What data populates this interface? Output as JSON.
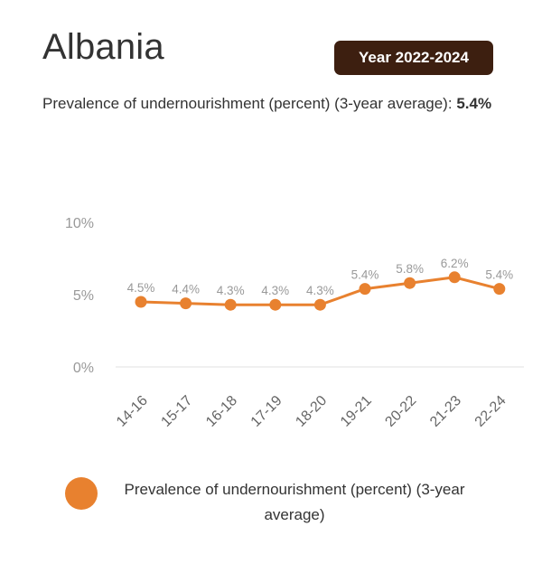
{
  "header": {
    "country": "Albania",
    "year_badge": "Year 2022-2024"
  },
  "indicator": {
    "label": "Prevalence of undernourishment (percent) (3-year average):",
    "value": "5.4%"
  },
  "legend": {
    "label": "Prevalence of undernourishment (percent) (3-year average)"
  },
  "colors": {
    "series": "#e8812f",
    "badge_bg": "#3d1f10"
  },
  "chart_data": {
    "type": "line",
    "categories": [
      "14-16",
      "15-17",
      "16-18",
      "17-19",
      "18-20",
      "19-21",
      "20-22",
      "21-23",
      "22-24"
    ],
    "series": [
      {
        "name": "Prevalence of undernourishment (percent) (3-year average)",
        "values": [
          4.5,
          4.4,
          4.3,
          4.3,
          4.3,
          5.4,
          5.8,
          6.2,
          5.4
        ],
        "labels": [
          "4.5%",
          "4.4%",
          "4.3%",
          "4.3%",
          "4.3%",
          "5.4%",
          "5.8%",
          "6.2%",
          "5.4%"
        ]
      }
    ],
    "yticks": [
      "0%",
      "5%",
      "10%"
    ],
    "ytick_values": [
      0,
      5,
      10
    ],
    "ylim": [
      0,
      10
    ],
    "title": "",
    "xlabel": "",
    "ylabel": "",
    "grid": false,
    "legend_position": "bottom"
  }
}
